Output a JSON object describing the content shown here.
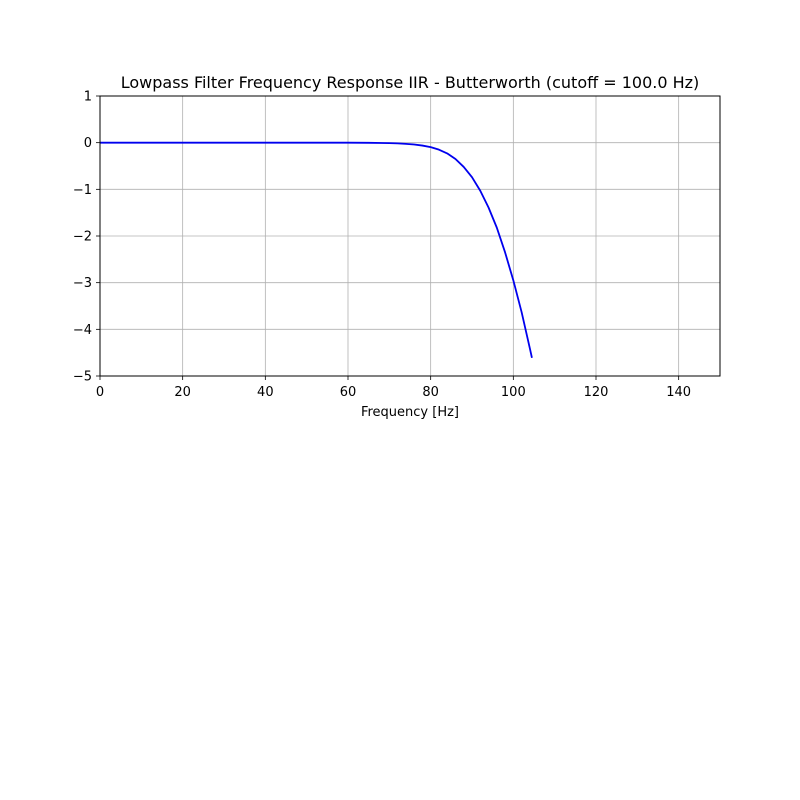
{
  "chart_data": {
    "type": "line",
    "title": "Lowpass Filter Frequency Response IIR - Butterworth (cutoff = 100.0 Hz)",
    "xlabel": "Frequency [Hz]",
    "ylabel": "",
    "xlim": [
      0,
      150
    ],
    "ylim": [
      -5,
      1
    ],
    "xticks": [
      0,
      20,
      40,
      60,
      80,
      100,
      120,
      140
    ],
    "yticks": [
      1,
      0,
      -1,
      -2,
      -3,
      -4,
      -5
    ],
    "xtick_labels": [
      "0",
      "20",
      "40",
      "60",
      "80",
      "100",
      "120",
      "140"
    ],
    "ytick_labels": [
      "1",
      "0",
      "−1",
      "−2",
      "−3",
      "−4",
      "−5"
    ],
    "grid": true,
    "legend": "none",
    "series": [
      {
        "color": "#0000ee",
        "x": [
          0,
          10,
          20,
          30,
          40,
          50,
          55,
          60,
          65,
          70,
          72,
          74,
          76,
          78,
          80,
          82,
          84,
          86,
          88,
          90,
          92,
          94,
          96,
          98,
          100,
          102,
          104,
          104.5
        ],
        "y": [
          0,
          0,
          0,
          0,
          0,
          0,
          0,
          0,
          -0.003,
          -0.01,
          -0.016,
          -0.026,
          -0.04,
          -0.062,
          -0.095,
          -0.15,
          -0.23,
          -0.35,
          -0.52,
          -0.74,
          -1.03,
          -1.39,
          -1.82,
          -2.35,
          -2.95,
          -3.63,
          -4.41,
          -4.61
        ]
      }
    ]
  }
}
